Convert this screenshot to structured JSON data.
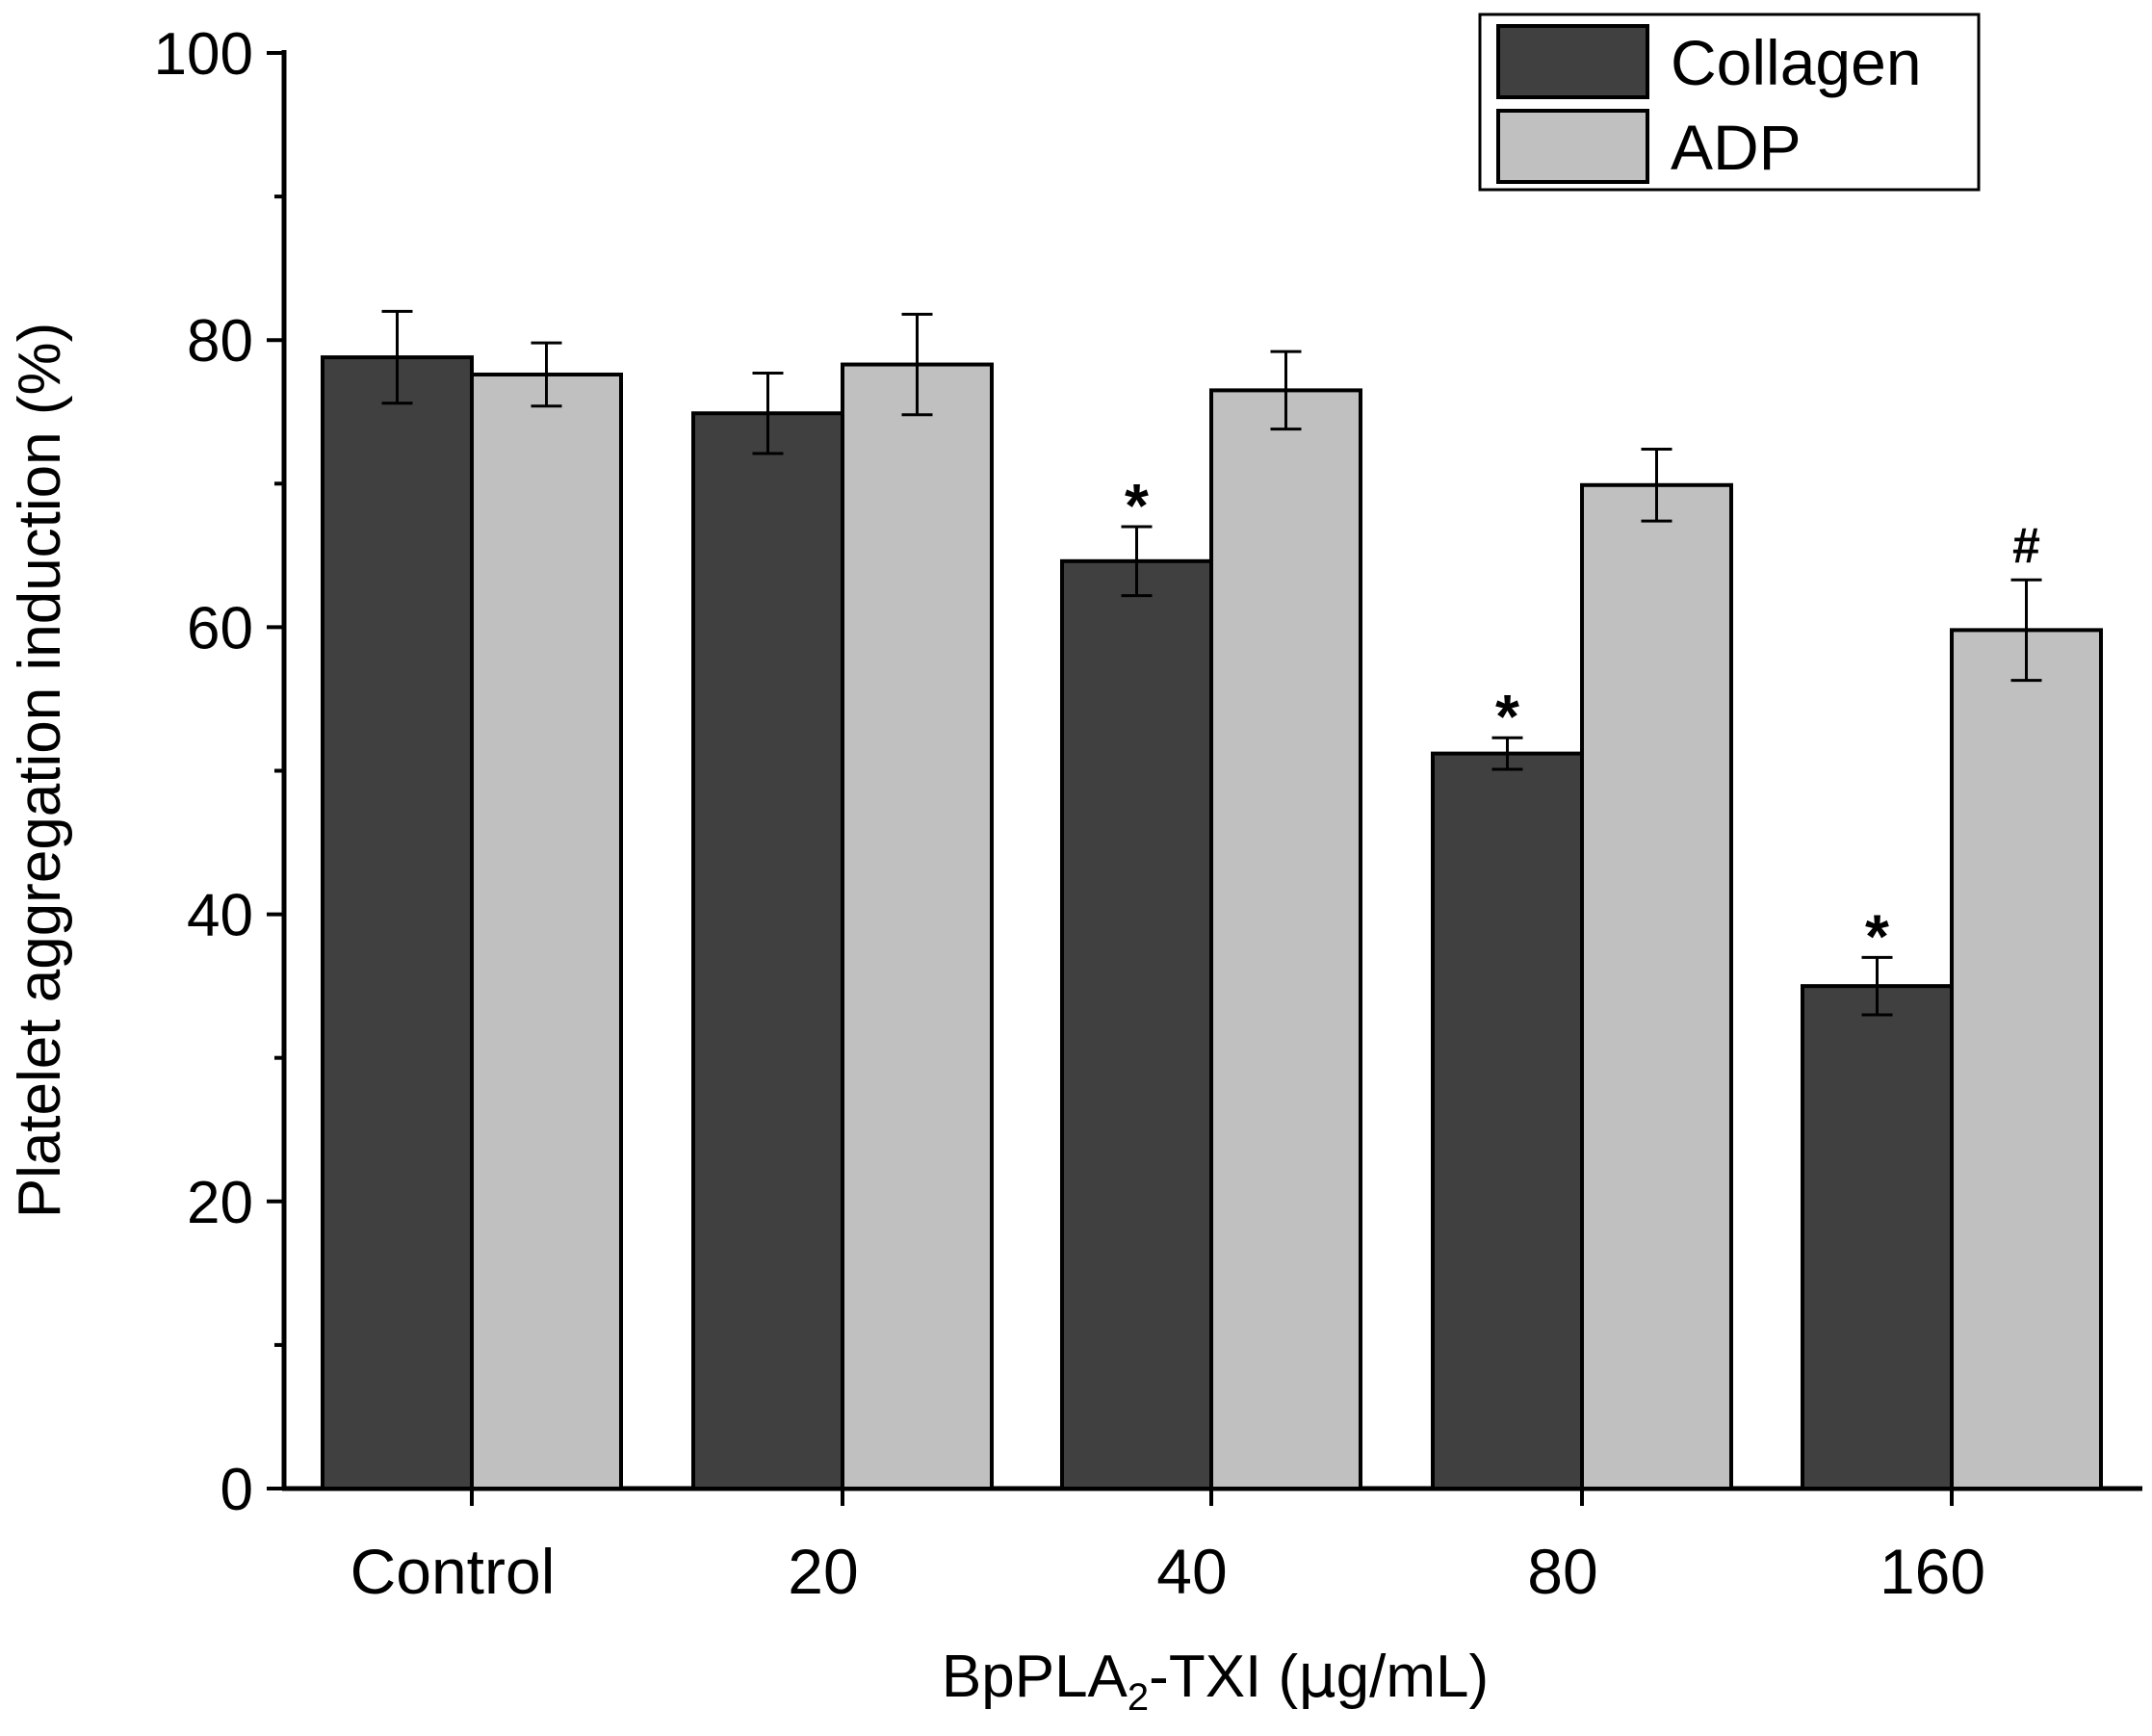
{
  "chart_data": {
    "type": "bar",
    "title": "",
    "categories": [
      "Control",
      "20",
      "40",
      "80",
      "160"
    ],
    "series": [
      {
        "name": "Collagen",
        "color": "#404040",
        "values": [
          78.8,
          74.9,
          64.6,
          51.2,
          35.0
        ],
        "errors": [
          3.2,
          2.8,
          2.4,
          1.1,
          2.0
        ],
        "annotations": [
          "",
          "",
          "*",
          "*",
          "*"
        ]
      },
      {
        "name": "ADP",
        "color": "#c0c0c0",
        "values": [
          77.6,
          78.3,
          76.5,
          69.9,
          59.8
        ],
        "errors": [
          2.2,
          3.5,
          2.7,
          2.5,
          3.5
        ],
        "annotations": [
          "",
          "",
          "",
          "",
          "#"
        ]
      }
    ],
    "ylabel": "Platelet aggregation induction (%)",
    "xlabel_main": "BpPLA",
    "xlabel_sub": "2",
    "xlabel_rest": "-TXI (",
    "xlabel_mu": "μ",
    "xlabel_end": "g/mL)",
    "ylim": [
      0,
      100
    ],
    "yticks": [
      "0",
      "20",
      "40",
      "60",
      "80",
      "100"
    ],
    "legend_position": "top-right",
    "grid": false
  }
}
